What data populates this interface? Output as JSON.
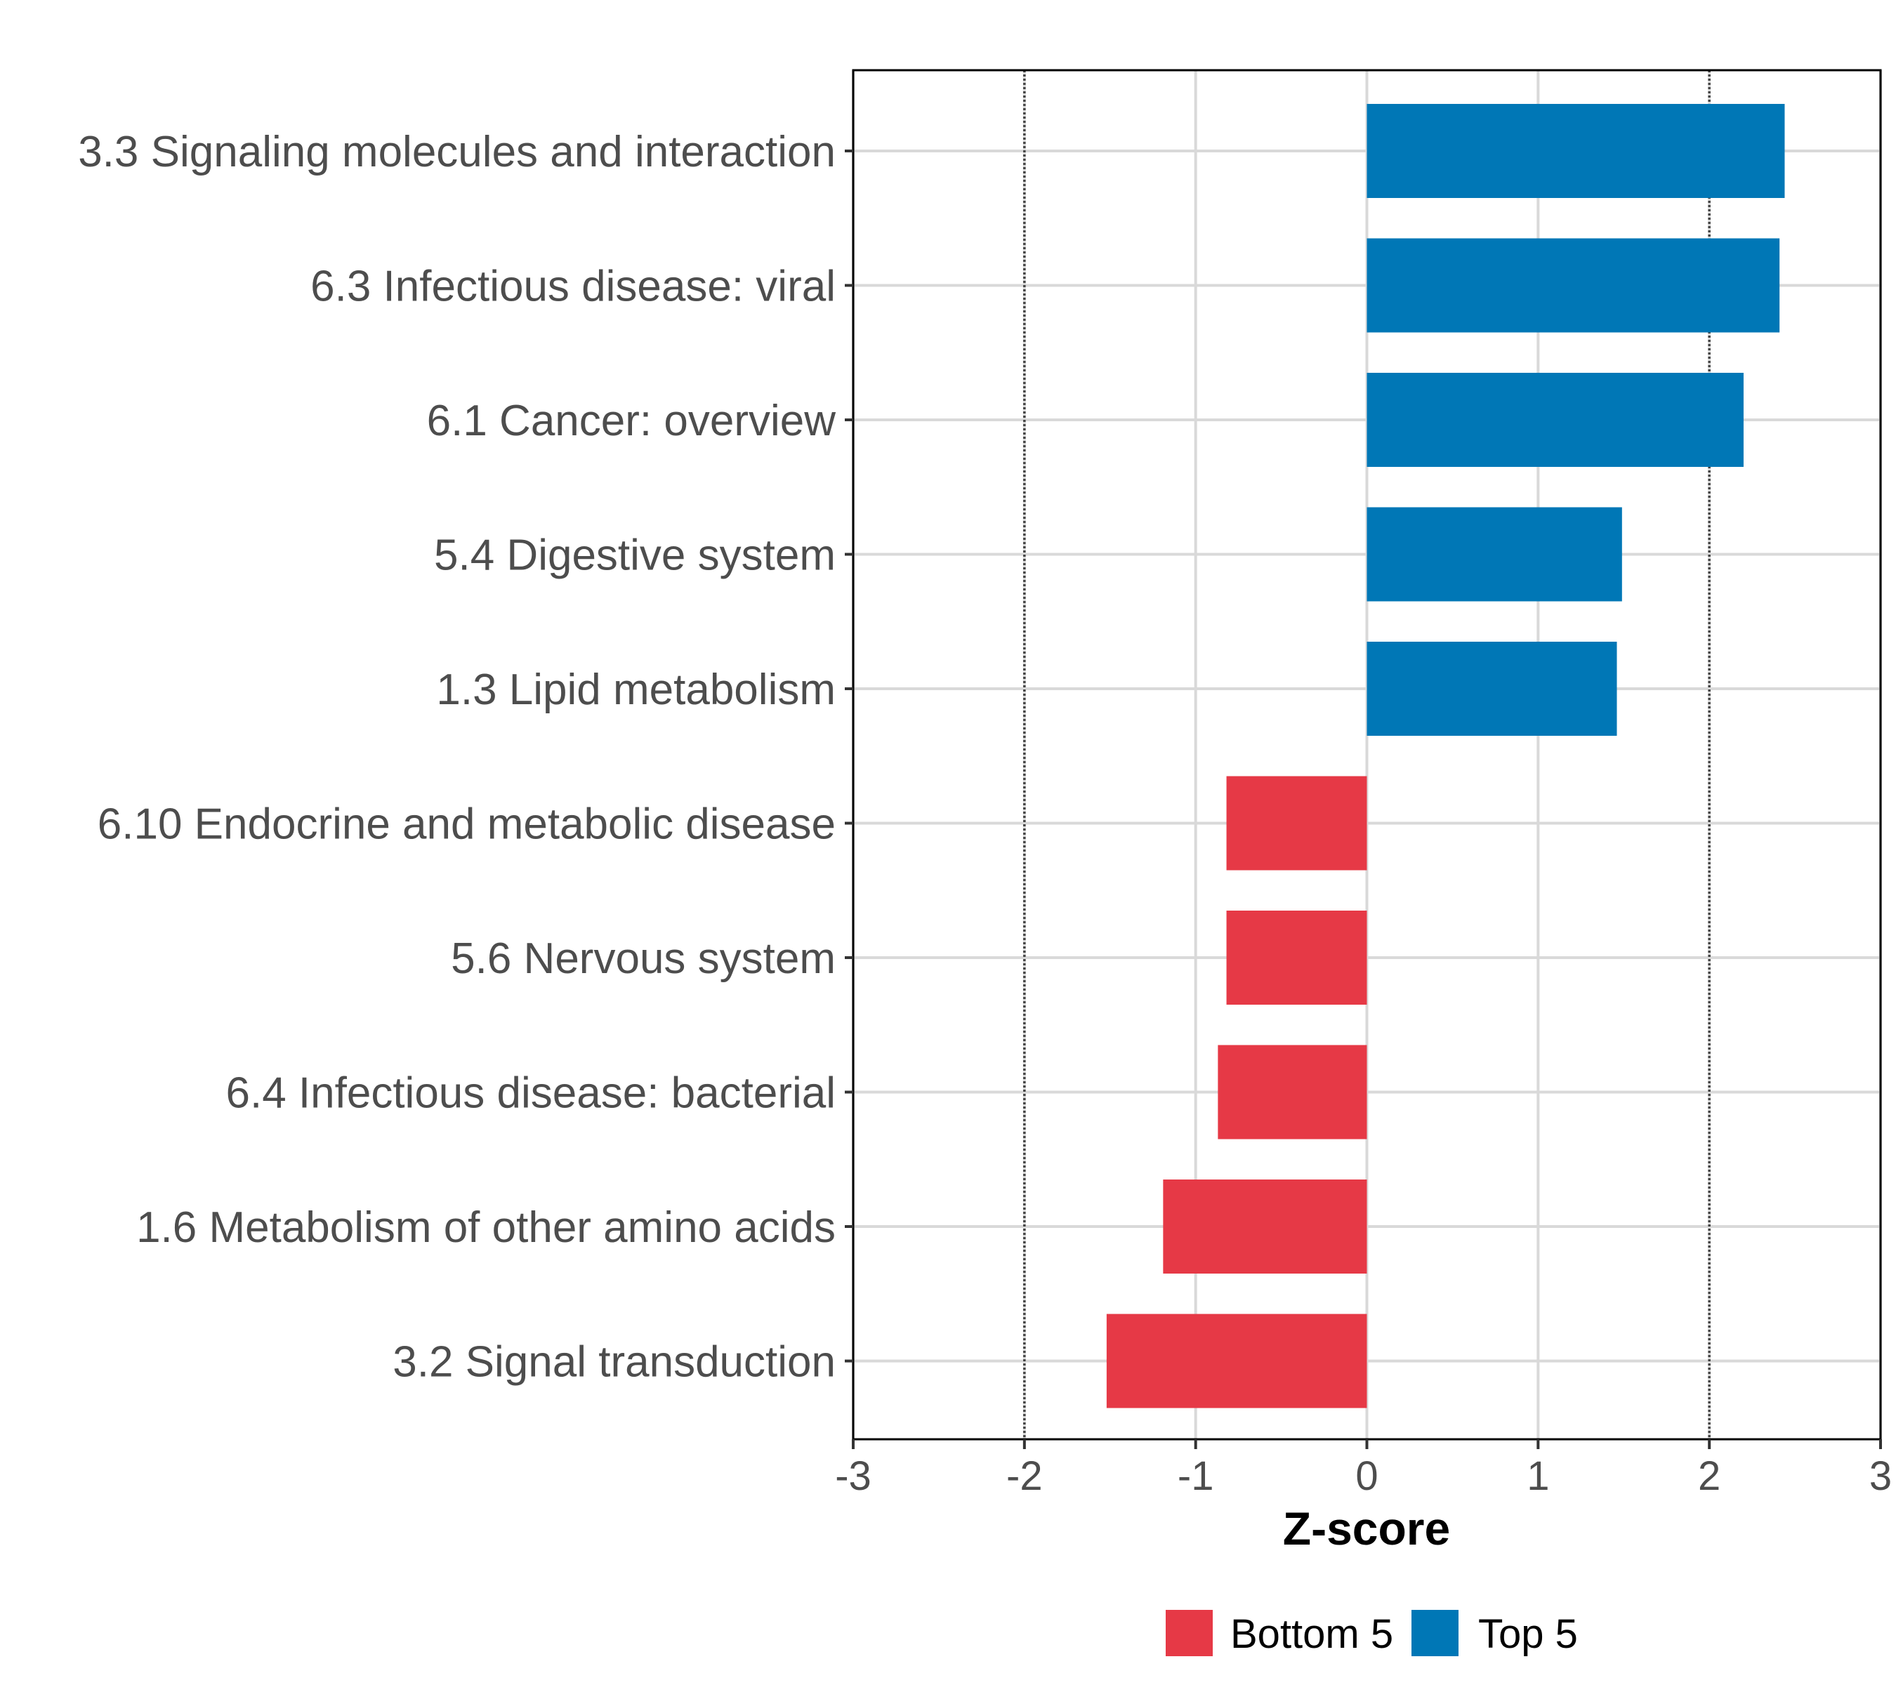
{
  "chart_data": {
    "type": "bar",
    "orientation": "horizontal",
    "title": "",
    "xlabel": "Z-score",
    "ylabel": "",
    "xlim": [
      -3,
      3
    ],
    "xticks": [
      -3,
      -2,
      -1,
      0,
      1,
      2,
      3
    ],
    "tick_labels": [
      "-3",
      "-2",
      "-1",
      "0",
      "1",
      "2",
      "3"
    ],
    "reference_lines": [
      -2,
      2
    ],
    "grid": true,
    "categories": [
      "3.3 Signaling molecules and interaction",
      "6.3 Infectious disease: viral",
      "6.1 Cancer: overview",
      "5.4 Digestive system",
      "1.3 Lipid metabolism",
      "6.10 Endocrine and metabolic disease",
      "5.6 Nervous system",
      "6.4 Infectious disease: bacterial",
      "1.6 Metabolism of other amino acids",
      "3.2 Signal transduction"
    ],
    "values": [
      2.44,
      2.41,
      2.2,
      1.49,
      1.46,
      -0.82,
      -0.82,
      -0.87,
      -1.19,
      -1.52
    ],
    "groups": [
      "Top 5",
      "Top 5",
      "Top 5",
      "Top 5",
      "Top 5",
      "Bottom 5",
      "Bottom 5",
      "Bottom 5",
      "Bottom 5",
      "Bottom 5"
    ],
    "legend": {
      "position": "bottom",
      "items": [
        {
          "label": "Bottom 5",
          "color": "#E63946"
        },
        {
          "label": "Top 5",
          "color": "#0077B6"
        }
      ]
    },
    "colors": {
      "Top 5": "#0077B6",
      "Bottom 5": "#E63946"
    }
  }
}
